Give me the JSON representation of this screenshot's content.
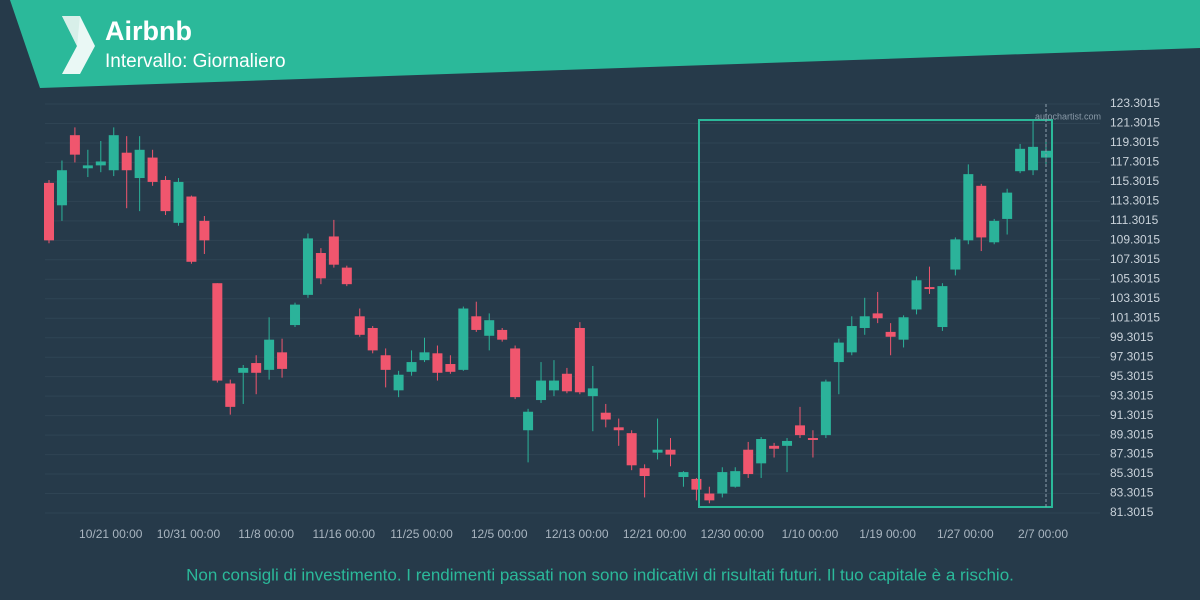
{
  "header": {
    "title": "Airbnb",
    "subtitle": "Intervallo: Giornaliero"
  },
  "footer": {
    "disclaimer": "Non consigli di investimento. I rendimenti passati non sono indicativi di risultati futuri. Il tuo capitale è a rischio."
  },
  "chart_data": {
    "type": "candlestick",
    "watermark": "autochartist.com",
    "up_color": "#2bb39a",
    "down_color": "#f0566e",
    "grid": true,
    "ylim": [
      81.3015,
      123.3015
    ],
    "yticks": [
      81.3015,
      83.3015,
      85.3015,
      87.3015,
      89.3015,
      91.3015,
      93.3015,
      95.3015,
      97.3015,
      99.3015,
      101.3015,
      103.3015,
      105.3015,
      107.3015,
      109.3015,
      111.3015,
      113.3015,
      115.3015,
      117.3015,
      119.3015,
      121.3015,
      123.3015
    ],
    "categories": [
      null,
      null,
      null,
      null,
      null,
      "10/21 00:00",
      null,
      null,
      null,
      null,
      null,
      "10/31 00:00",
      null,
      null,
      null,
      null,
      null,
      "11/8 00:00",
      null,
      null,
      null,
      null,
      null,
      "11/16 00:00",
      null,
      null,
      null,
      null,
      null,
      "11/25 00:00",
      null,
      null,
      null,
      null,
      null,
      "12/5 00:00",
      null,
      null,
      null,
      null,
      null,
      "12/13 00:00",
      null,
      null,
      null,
      null,
      null,
      "12/21 00:00",
      null,
      null,
      null,
      null,
      null,
      "12/30 00:00",
      null,
      null,
      null,
      null,
      null,
      "1/10 00:00",
      null,
      null,
      null,
      null,
      null,
      "1/19 00:00",
      null,
      null,
      null,
      null,
      null,
      "1/27 00:00",
      null,
      null,
      null,
      null,
      null,
      "2/7 00:00"
    ],
    "open": [
      115.2,
      112.9,
      120.1,
      116.7,
      117.0,
      116.5,
      118.3,
      115.7,
      117.8,
      115.5,
      111.1,
      113.8,
      111.3,
      104.9,
      94.6,
      95.7,
      96.7,
      96.0,
      97.8,
      100.6,
      103.7,
      108.0,
      109.7,
      106.5,
      101.5,
      100.3,
      97.5,
      93.9,
      95.8,
      97.0,
      97.7,
      96.6,
      96.0,
      101.5,
      99.5,
      100.1,
      98.2,
      89.8,
      92.9,
      93.9,
      95.6,
      100.3,
      93.3,
      91.6,
      90.1,
      89.5,
      85.9,
      87.5,
      87.8,
      85.0,
      84.8,
      83.3,
      83.3,
      84.0,
      87.8,
      86.4,
      88.2,
      88.2,
      90.3,
      89.0,
      89.3,
      96.8,
      97.8,
      100.3,
      101.8,
      99.9,
      99.1,
      102.2,
      104.5,
      100.4,
      106.3,
      109.3,
      114.9,
      109.1,
      111.5,
      116.4,
      116.5,
      117.8
    ],
    "high": [
      115.5,
      117.5,
      120.9,
      118.6,
      119.5,
      120.9,
      120.0,
      120.0,
      118.6,
      115.9,
      115.7,
      113.9,
      111.8,
      104.9,
      95.0,
      96.5,
      97.5,
      101.4,
      99.2,
      102.9,
      110.0,
      108.5,
      111.4,
      106.7,
      102.3,
      100.5,
      98.2,
      95.9,
      98.0,
      99.3,
      98.5,
      97.5,
      102.5,
      103.0,
      101.8,
      100.3,
      98.5,
      92.0,
      96.8,
      97.0,
      96.2,
      100.9,
      96.4,
      92.5,
      91.0,
      89.8,
      86.3,
      91.0,
      89.0,
      85.6,
      84.9,
      84.0,
      86.0,
      86.0,
      88.6,
      89.1,
      88.5,
      89.0,
      92.2,
      89.8,
      95.0,
      99.2,
      101.5,
      103.4,
      104.0,
      100.8,
      101.6,
      105.6,
      106.6,
      104.9,
      109.6,
      117.1,
      115.1,
      111.5,
      114.6,
      119.2,
      121.6,
      119.5
    ],
    "low": [
      109.0,
      111.3,
      117.3,
      115.8,
      116.3,
      115.9,
      112.6,
      112.3,
      114.9,
      111.9,
      110.8,
      106.9,
      107.9,
      94.7,
      91.4,
      92.5,
      93.5,
      95.0,
      95.2,
      100.4,
      103.4,
      104.8,
      106.5,
      104.6,
      99.4,
      97.7,
      94.2,
      93.2,
      95.4,
      96.8,
      94.9,
      95.6,
      95.9,
      99.9,
      98.0,
      98.9,
      93.0,
      86.5,
      92.6,
      93.3,
      93.6,
      93.5,
      89.7,
      90.1,
      88.2,
      85.7,
      82.9,
      86.8,
      86.1,
      84.0,
      82.6,
      82.3,
      82.9,
      83.9,
      84.9,
      84.9,
      87.0,
      85.5,
      89.0,
      87.0,
      89.0,
      93.5,
      97.5,
      99.6,
      100.8,
      97.5,
      98.3,
      101.7,
      103.8,
      100.0,
      105.7,
      108.9,
      108.2,
      108.9,
      109.9,
      116.2,
      116.0,
      117.0
    ],
    "close": [
      109.3,
      116.5,
      118.1,
      117.0,
      117.4,
      120.1,
      116.5,
      118.6,
      115.3,
      112.3,
      115.3,
      107.1,
      109.3,
      94.9,
      92.2,
      96.2,
      95.7,
      99.1,
      96.1,
      102.7,
      109.5,
      105.4,
      106.8,
      104.8,
      99.6,
      98.0,
      96.0,
      95.5,
      96.8,
      97.8,
      95.7,
      95.8,
      102.3,
      100.1,
      101.1,
      99.1,
      93.2,
      91.7,
      94.9,
      94.9,
      93.8,
      93.7,
      94.1,
      90.9,
      89.8,
      86.2,
      85.1,
      87.8,
      87.3,
      85.5,
      83.7,
      82.6,
      85.5,
      85.6,
      85.3,
      88.9,
      87.9,
      88.7,
      89.3,
      88.8,
      94.8,
      98.8,
      100.5,
      101.5,
      101.3,
      99.4,
      101.4,
      105.2,
      104.3,
      104.6,
      109.4,
      116.1,
      109.6,
      111.3,
      114.2,
      118.7,
      118.9,
      118.5
    ]
  }
}
